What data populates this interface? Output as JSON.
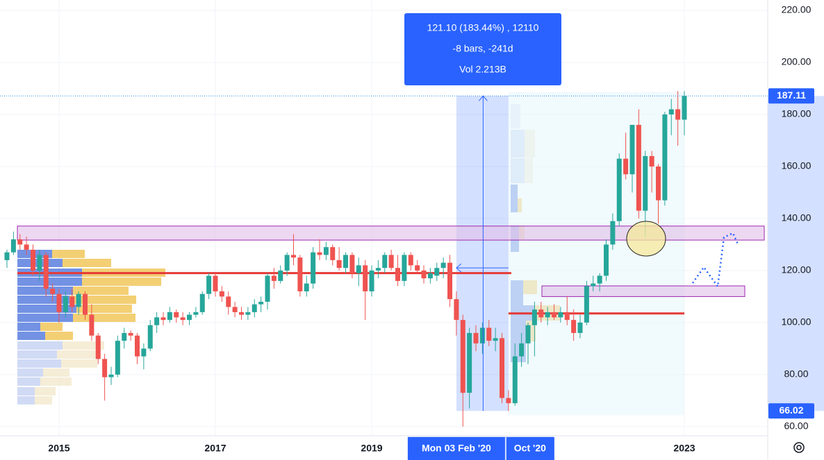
{
  "chart_data": {
    "type": "candlestick",
    "up_color": "#26a69a",
    "down_color": "#ef5350",
    "categories": [
      null,
      null,
      null,
      null,
      null,
      null,
      null,
      null,
      "2015",
      null,
      null,
      null,
      null,
      null,
      null,
      null,
      null,
      null,
      null,
      null,
      null,
      null,
      null,
      null,
      null,
      null,
      null,
      null,
      null,
      null,
      null,
      null,
      "2017",
      null,
      null,
      null,
      null,
      null,
      null,
      null,
      null,
      null,
      null,
      null,
      null,
      null,
      null,
      null,
      null,
      null,
      null,
      null,
      null,
      null,
      null,
      null,
      "2019",
      null,
      null,
      null,
      null,
      null,
      null,
      null,
      null,
      null,
      null,
      null,
      null,
      "Mon 03 Feb '20",
      null,
      null,
      null,
      null,
      null,
      null,
      null,
      "Oct '20",
      null,
      null,
      null,
      null,
      null,
      null,
      null,
      null,
      null,
      null,
      null,
      null,
      null,
      null,
      null,
      null,
      null,
      null,
      null,
      null,
      null,
      null,
      null,
      null,
      null,
      null,
      "2023"
    ],
    "open": [
      124,
      127,
      132,
      130,
      128,
      120,
      126,
      113,
      111,
      104,
      110,
      106,
      111,
      103,
      95,
      86,
      79,
      80,
      93,
      96,
      95,
      87,
      90,
      99,
      102,
      101,
      104,
      102,
      101,
      103,
      104,
      111,
      118,
      112,
      110,
      106,
      104,
      103,
      104,
      107,
      108,
      118,
      116,
      120,
      126,
      125,
      112,
      115,
      127,
      126,
      129,
      124,
      121,
      126,
      119,
      122,
      112,
      120,
      121,
      126,
      121,
      116,
      126,
      122,
      120,
      117,
      118,
      121,
      123,
      109,
      101,
      73,
      96,
      92,
      98,
      93,
      94,
      71,
      69,
      87,
      92,
      99,
      105,
      102,
      104,
      102,
      104,
      101,
      96,
      100,
      114,
      115,
      118,
      130,
      139,
      163,
      157,
      176,
      143,
      164,
      160,
      147,
      180,
      182,
      178
    ],
    "high": [
      128,
      135,
      134,
      133,
      130,
      128,
      127,
      115,
      113,
      112,
      113,
      112,
      112,
      107,
      96,
      88,
      83,
      95,
      98,
      97,
      96,
      92,
      101,
      104,
      104,
      106,
      105,
      104,
      104,
      106,
      112,
      119,
      119,
      114,
      112,
      108,
      106,
      106,
      109,
      110,
      119,
      121,
      122,
      127,
      134,
      126,
      118,
      129,
      132,
      131,
      130,
      129,
      127,
      127,
      125,
      124,
      122,
      124,
      127,
      128,
      126,
      127,
      127,
      124,
      122,
      121,
      123,
      125,
      126,
      112,
      103,
      98,
      99,
      100,
      101,
      98,
      96,
      74,
      92,
      96,
      100,
      108,
      108,
      106,
      107,
      106,
      110,
      105,
      103,
      116,
      118,
      119,
      132,
      142,
      165,
      173,
      176,
      182,
      166,
      166,
      161,
      181,
      186,
      189,
      189
    ],
    "low": [
      121,
      126,
      128,
      126,
      118,
      116,
      110,
      108,
      100,
      102,
      104,
      103,
      101,
      93,
      84,
      70,
      76,
      79,
      90,
      93,
      84,
      82,
      89,
      96,
      99,
      100,
      100,
      99,
      99,
      102,
      103,
      109,
      110,
      108,
      103,
      102,
      101,
      101,
      102,
      104,
      105,
      113,
      115,
      118,
      122,
      110,
      110,
      113,
      124,
      124,
      122,
      120,
      119,
      117,
      114,
      101,
      110,
      117,
      119,
      120,
      114,
      114,
      120,
      119,
      115,
      115,
      116,
      117,
      106,
      95,
      60,
      67,
      89,
      88,
      91,
      89,
      69,
      66,
      68,
      83,
      84,
      87,
      100,
      99,
      101,
      100,
      99,
      93,
      94,
      99,
      112,
      112,
      116,
      128,
      137,
      155,
      150,
      140,
      133,
      150,
      138,
      145,
      172,
      168,
      172
    ],
    "close": [
      127,
      132,
      130,
      128,
      120,
      126,
      113,
      111,
      104,
      110,
      106,
      111,
      103,
      95,
      86,
      79,
      80,
      93,
      96,
      95,
      87,
      90,
      99,
      102,
      101,
      104,
      102,
      101,
      103,
      104,
      111,
      118,
      112,
      110,
      106,
      104,
      103,
      104,
      107,
      108,
      118,
      116,
      120,
      126,
      125,
      112,
      115,
      127,
      126,
      129,
      124,
      121,
      126,
      119,
      122,
      112,
      120,
      121,
      126,
      121,
      116,
      126,
      122,
      120,
      117,
      119,
      121,
      123,
      109,
      101,
      73,
      96,
      92,
      98,
      93,
      94,
      71,
      69,
      87,
      92,
      99,
      105,
      102,
      104,
      102,
      104,
      101,
      96,
      100,
      114,
      115,
      118,
      130,
      139,
      163,
      157,
      176,
      143,
      164,
      160,
      147,
      180,
      182,
      178,
      187.11
    ],
    "levels": [
      119,
      103.5
    ],
    "zones": [
      [
        131.7,
        137.1
      ],
      [
        110,
        114.1
      ]
    ],
    "measure": {
      "high": 187.11,
      "low": 66.02,
      "lines": [
        "121.10 (183.44%) , 12110",
        "-8 bars, -241d",
        "Vol 2.213B"
      ]
    },
    "ylim": [
      56.5,
      224
    ],
    "yticks": [
      {
        "value": 60,
        "label": "60.00"
      },
      {
        "value": 80,
        "label": "80.00"
      },
      {
        "value": 100,
        "label": "100.00"
      },
      {
        "value": 120,
        "label": "120.00"
      },
      {
        "value": 140,
        "label": "140.00"
      },
      {
        "value": 160,
        "label": "160.00"
      },
      {
        "value": 180,
        "label": "180.00"
      },
      {
        "value": 200,
        "label": "200.00"
      },
      {
        "value": 220,
        "label": "220.00"
      }
    ],
    "grid": true
  }
}
